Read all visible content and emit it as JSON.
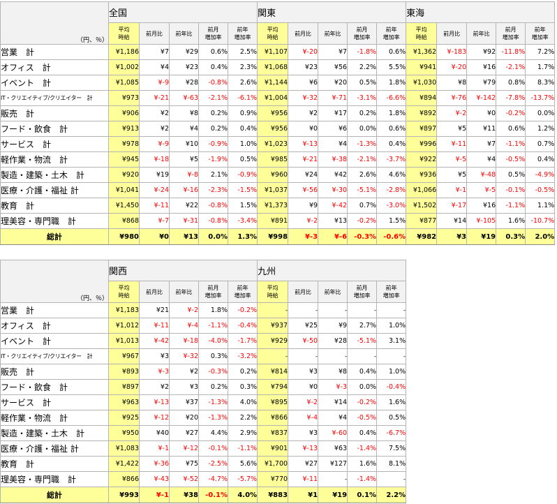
{
  "unit_label": "（円、％）",
  "sub_headers": [
    "平均\n時給",
    "前月比",
    "前年比",
    "前月\n増加率",
    "前年\n増加率"
  ],
  "categories": [
    "営業　計",
    "オフィス　計",
    "イベント　計",
    "IT・クリエイティブ/クリエイター　計",
    "販売　計",
    "フード・飲食　計",
    "サービス　計",
    "軽作業・物流　計",
    "製造・建築・土木　計",
    "医療・介護・福祉 計",
    "教育　計",
    "理美容・専門職　計"
  ],
  "total_label": "総計",
  "tables": [
    {
      "regions": [
        {
          "name": "全国",
          "rows": [
            [
              "¥1,186",
              "¥7",
              "¥29",
              "0.6%",
              "2.5%"
            ],
            [
              "¥1,002",
              "¥4",
              "¥23",
              "0.4%",
              "2.3%"
            ],
            [
              "¥1,085",
              "¥-9",
              "¥28",
              "-0.8%",
              "2.6%"
            ],
            [
              "¥973",
              "¥-21",
              "¥-63",
              "-2.1%",
              "-6.1%"
            ],
            [
              "¥906",
              "¥2",
              "¥8",
              "0.2%",
              "0.9%"
            ],
            [
              "¥913",
              "¥2",
              "¥4",
              "0.2%",
              "0.4%"
            ],
            [
              "¥978",
              "¥-9",
              "¥10",
              "-0.9%",
              "1.0%"
            ],
            [
              "¥945",
              "¥-18",
              "¥5",
              "-1.9%",
              "0.5%"
            ],
            [
              "¥920",
              "¥19",
              "¥-8",
              "2.1%",
              "-0.9%"
            ],
            [
              "¥1,041",
              "¥-24",
              "¥-16",
              "-2.3%",
              "-1.5%"
            ],
            [
              "¥1,450",
              "¥-11",
              "¥22",
              "-0.8%",
              "1.5%"
            ],
            [
              "¥868",
              "¥-7",
              "¥-31",
              "-0.8%",
              "-3.4%"
            ]
          ],
          "total": [
            "¥980",
            "¥0",
            "¥13",
            "0.0%",
            "1.3%"
          ]
        },
        {
          "name": "関東",
          "rows": [
            [
              "¥1,107",
              "¥-20",
              "¥7",
              "-1.8%",
              "0.6%"
            ],
            [
              "¥1,068",
              "¥23",
              "¥56",
              "2.2%",
              "5.5%"
            ],
            [
              "¥1,144",
              "¥6",
              "¥20",
              "0.5%",
              "1.8%"
            ],
            [
              "¥1,004",
              "¥-32",
              "¥-71",
              "-3.1%",
              "-6.6%"
            ],
            [
              "¥956",
              "¥2",
              "¥17",
              "0.2%",
              "1.8%"
            ],
            [
              "¥956",
              "¥0",
              "¥6",
              "0.0%",
              "0.6%"
            ],
            [
              "¥1,023",
              "¥-13",
              "¥4",
              "-1.3%",
              "0.4%"
            ],
            [
              "¥985",
              "¥-21",
              "¥-38",
              "-2.1%",
              "-3.7%"
            ],
            [
              "¥960",
              "¥24",
              "¥42",
              "2.6%",
              "4.6%"
            ],
            [
              "¥1,037",
              "¥-56",
              "¥-30",
              "-5.1%",
              "-2.8%"
            ],
            [
              "¥1,373",
              "¥9",
              "¥-42",
              "0.7%",
              "-3.0%"
            ],
            [
              "¥891",
              "¥-2",
              "¥13",
              "-0.2%",
              "1.5%"
            ]
          ],
          "total": [
            "¥998",
            "¥-3",
            "¥-6",
            "-0.3%",
            "-0.6%"
          ]
        },
        {
          "name": "東海",
          "rows": [
            [
              "¥1,362",
              "¥-183",
              "¥92",
              "-11.8%",
              "7.2%"
            ],
            [
              "¥941",
              "¥-20",
              "¥16",
              "-2.1%",
              "1.7%"
            ],
            [
              "¥1,030",
              "¥8",
              "¥79",
              "0.8%",
              "8.3%"
            ],
            [
              "¥894",
              "¥-76",
              "¥-142",
              "-7.8%",
              "-13.7%"
            ],
            [
              "¥892",
              "¥-2",
              "¥0",
              "-0.2%",
              "0.0%"
            ],
            [
              "¥897",
              "¥5",
              "¥11",
              "0.6%",
              "1.2%"
            ],
            [
              "¥996",
              "¥-11",
              "¥7",
              "-1.1%",
              "0.7%"
            ],
            [
              "¥922",
              "¥-5",
              "¥4",
              "-0.5%",
              "0.4%"
            ],
            [
              "¥936",
              "¥5",
              "¥-48",
              "0.5%",
              "-4.9%"
            ],
            [
              "¥1,066",
              "¥-1",
              "¥-5",
              "-0.1%",
              "-0.5%"
            ],
            [
              "¥1,502",
              "¥-17",
              "¥16",
              "-1.1%",
              "1.1%"
            ],
            [
              "¥877",
              "¥14",
              "¥-105",
              "1.6%",
              "-10.7%"
            ]
          ],
          "total": [
            "¥982",
            "¥3",
            "¥19",
            "0.3%",
            "2.0%"
          ]
        }
      ]
    },
    {
      "regions": [
        {
          "name": "関西",
          "rows": [
            [
              "¥1,183",
              "¥21",
              "¥-2",
              "1.8%",
              "-0.2%"
            ],
            [
              "¥1,012",
              "¥-11",
              "¥-4",
              "-1.1%",
              "-0.4%"
            ],
            [
              "¥1,013",
              "¥-42",
              "¥-18",
              "-4.0%",
              "-1.7%"
            ],
            [
              "¥967",
              "¥3",
              "¥-32",
              "0.3%",
              "-3.2%"
            ],
            [
              "¥893",
              "¥-3",
              "¥2",
              "-0.3%",
              "0.2%"
            ],
            [
              "¥897",
              "¥2",
              "¥3",
              "0.2%",
              "0.3%"
            ],
            [
              "¥963",
              "¥-13",
              "¥37",
              "-1.3%",
              "4.0%"
            ],
            [
              "¥925",
              "¥-12",
              "¥20",
              "-1.3%",
              "2.2%"
            ],
            [
              "¥950",
              "¥40",
              "¥27",
              "4.4%",
              "2.9%"
            ],
            [
              "¥1,083",
              "¥-1",
              "¥-12",
              "-0.1%",
              "-1.1%"
            ],
            [
              "¥1,422",
              "¥-36",
              "¥75",
              "-2.5%",
              "5.6%"
            ],
            [
              "¥866",
              "¥-43",
              "¥-52",
              "-4.7%",
              "-5.7%"
            ]
          ],
          "total": [
            "¥993",
            "¥-1",
            "¥38",
            "-0.1%",
            "4.0%"
          ]
        },
        {
          "name": "九州",
          "rows": [
            [
              "-",
              "-",
              "-",
              "-",
              "-"
            ],
            [
              "¥937",
              "¥25",
              "¥9",
              "2.7%",
              "1.0%"
            ],
            [
              "¥929",
              "¥-50",
              "¥28",
              "-5.1%",
              "3.1%"
            ],
            [
              "-",
              "-",
              "-",
              "-",
              "-"
            ],
            [
              "¥814",
              "¥3",
              "¥8",
              "0.4%",
              "1.0%"
            ],
            [
              "¥794",
              "¥0",
              "¥-3",
              "0.0%",
              "-0.4%"
            ],
            [
              "¥895",
              "¥-2",
              "¥14",
              "-0.2%",
              "1.6%"
            ],
            [
              "¥866",
              "¥-4",
              "¥4",
              "-0.5%",
              "0.5%"
            ],
            [
              "¥837",
              "¥3",
              "¥-60",
              "0.4%",
              "-6.7%"
            ],
            [
              "¥901",
              "¥-13",
              "¥63",
              "-1.4%",
              "7.5%"
            ],
            [
              "¥1,700",
              "¥27",
              "¥127",
              "1.6%",
              "8.1%"
            ],
            [
              "¥770",
              "¥-11",
              "-",
              "-1.4%",
              "-"
            ]
          ],
          "total": [
            "¥883",
            "¥1",
            "¥19",
            "0.1%",
            "2.2%"
          ]
        }
      ]
    }
  ]
}
